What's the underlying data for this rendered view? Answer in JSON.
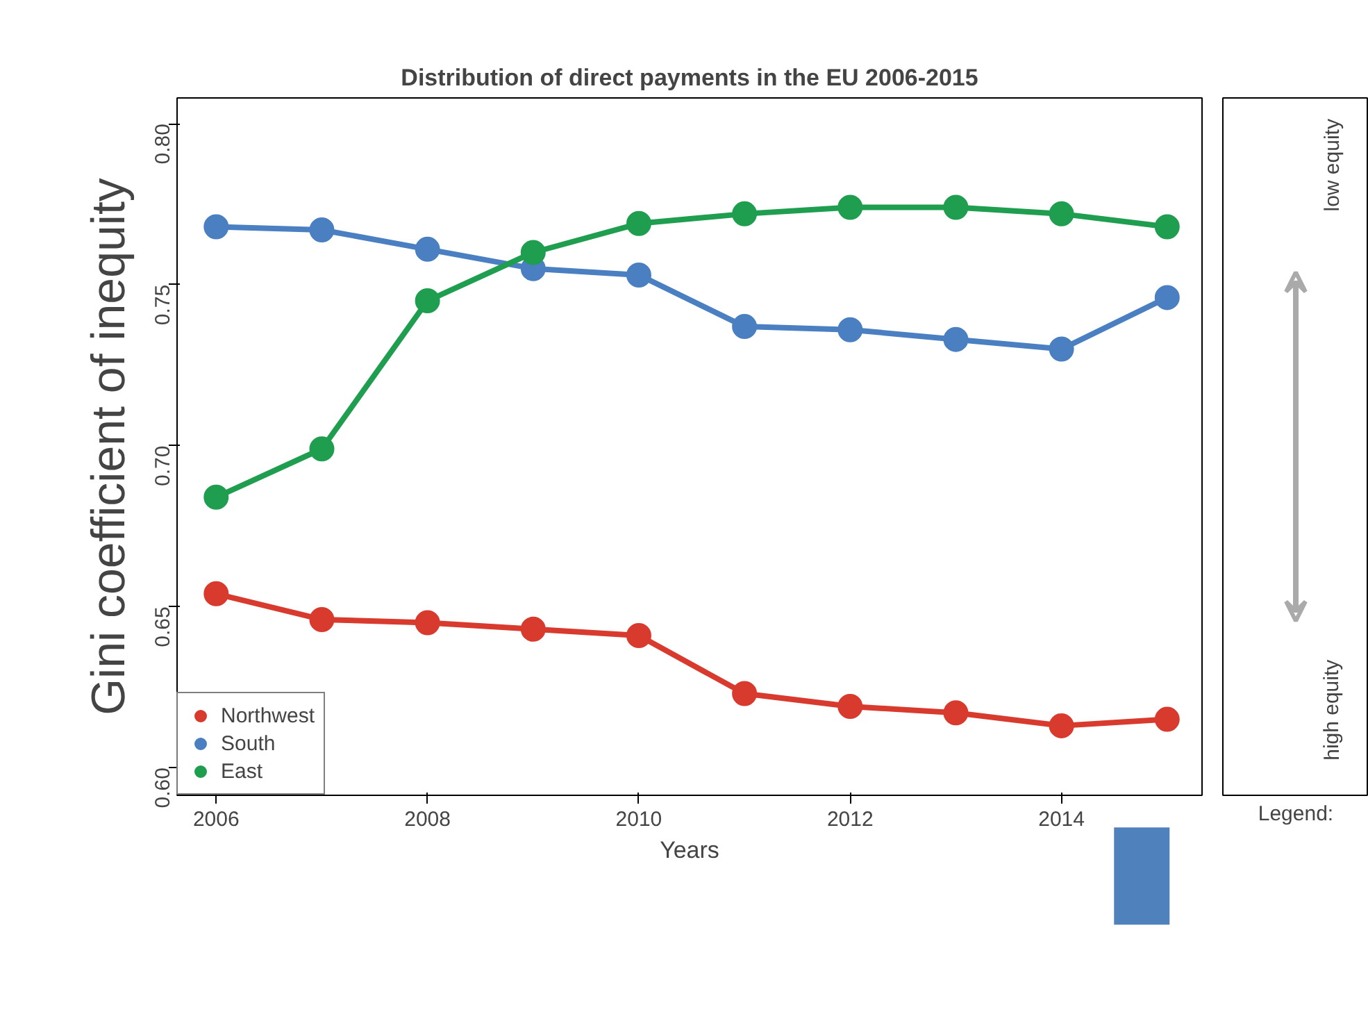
{
  "chart_data": {
    "type": "line",
    "title": "Distribution of direct payments in the EU 2006-2015",
    "xlabel": "Years",
    "ylabel": "Gini coefficient of inequity",
    "x": [
      2006,
      2007,
      2008,
      2009,
      2010,
      2011,
      2012,
      2013,
      2014,
      2015
    ],
    "series": [
      {
        "name": "Northwest",
        "color": "#d83a2e",
        "values": [
          0.654,
          0.646,
          0.645,
          0.643,
          0.641,
          0.623,
          0.619,
          0.617,
          0.613,
          0.615
        ]
      },
      {
        "name": "South",
        "color": "#4a7fc1",
        "values": [
          0.768,
          0.767,
          0.761,
          0.755,
          0.753,
          0.737,
          0.736,
          0.733,
          0.73,
          0.746
        ]
      },
      {
        "name": "East",
        "color": "#1f9e50",
        "values": [
          0.684,
          0.699,
          0.745,
          0.76,
          0.769,
          0.772,
          0.774,
          0.774,
          0.772,
          0.768
        ]
      }
    ],
    "xlim": [
      2005.63,
      2015.33
    ],
    "ylim": [
      0.5914,
      0.808
    ],
    "xticks": [
      2006,
      2008,
      2010,
      2012,
      2014
    ],
    "yticks": [
      {
        "value": 0.6,
        "label": "0.60"
      },
      {
        "value": 0.65,
        "label": "0.65"
      },
      {
        "value": 0.7,
        "label": "0.70"
      },
      {
        "value": 0.75,
        "label": "0.75"
      },
      {
        "value": 0.8,
        "label": "0.80"
      }
    ],
    "grid": false,
    "legend": "bottom left",
    "marker": "circle",
    "line_style": "solid",
    "annotations": [
      "low equity",
      "high equity",
      "Legend:"
    ]
  }
}
